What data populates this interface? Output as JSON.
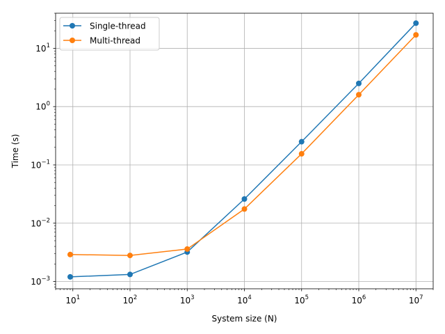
{
  "chart_data": {
    "type": "line",
    "xscale": "log",
    "yscale": "log",
    "xlabel": "System size (N)",
    "ylabel": "Time (s)",
    "xlim": [
      5,
      20000000
    ],
    "ylim": [
      0.00075,
      40
    ],
    "grid": true,
    "legend_position": "top-left",
    "x_ticks": [
      {
        "base": "10",
        "exp": "1",
        "value": 10
      },
      {
        "base": "10",
        "exp": "2",
        "value": 100
      },
      {
        "base": "10",
        "exp": "3",
        "value": 1000
      },
      {
        "base": "10",
        "exp": "4",
        "value": 10000
      },
      {
        "base": "10",
        "exp": "5",
        "value": 100000
      },
      {
        "base": "10",
        "exp": "6",
        "value": 1000000
      },
      {
        "base": "10",
        "exp": "7",
        "value": 10000000
      }
    ],
    "y_ticks": [
      {
        "base": "10",
        "exp": "−3",
        "value": 0.001
      },
      {
        "base": "10",
        "exp": "−2",
        "value": 0.01
      },
      {
        "base": "10",
        "exp": "−1",
        "value": 0.1
      },
      {
        "base": "10",
        "exp": "0",
        "value": 1
      },
      {
        "base": "10",
        "exp": "1",
        "value": 10
      }
    ],
    "x": [
      9,
      100,
      1000,
      10000,
      100000,
      1000000,
      10000000
    ],
    "series": [
      {
        "name": "Single-thread",
        "color": "#1f77b4",
        "values": [
          0.0012,
          0.00132,
          0.0032,
          0.026,
          0.25,
          2.5,
          27
        ]
      },
      {
        "name": "Multi-thread",
        "color": "#ff7f0e",
        "values": [
          0.0029,
          0.0028,
          0.0036,
          0.0175,
          0.155,
          1.6,
          17
        ]
      }
    ]
  }
}
